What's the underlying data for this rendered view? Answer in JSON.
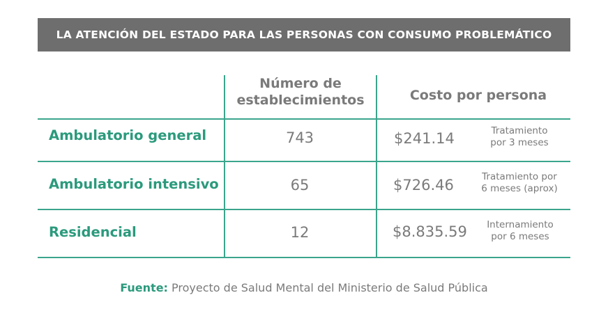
{
  "banner": {
    "title": "LA ATENCIÓN DEL ESTADO PARA LAS PERSONAS CON CONSUMO PROBLEMÁTICO"
  },
  "table": {
    "headers": {
      "establishments_line1": "Número de",
      "establishments_line2": "establecimientos",
      "cost": "Costo por persona"
    },
    "rows": [
      {
        "label": "Ambulatorio general",
        "count": "743",
        "cost": "$241.14",
        "note_line1": "Tratamiento",
        "note_line2": "por 3 meses"
      },
      {
        "label": "Ambulatorio intensivo",
        "count": "65",
        "cost": "$726.46",
        "note_line1": "Tratamiento por",
        "note_line2": "6 meses (aprox)"
      },
      {
        "label": "Residencial",
        "count": "12",
        "cost": "$8.835.59",
        "note_line1": "Internamiento",
        "note_line2": "por 6 meses"
      }
    ]
  },
  "source": {
    "label": "Fuente:",
    "text": " Proyecto de Salud Mental del Ministerio de Salud Pública"
  },
  "colors": {
    "accent": "#2b9a7c",
    "banner": "#6e6e6e",
    "text": "#7a7a7a"
  }
}
